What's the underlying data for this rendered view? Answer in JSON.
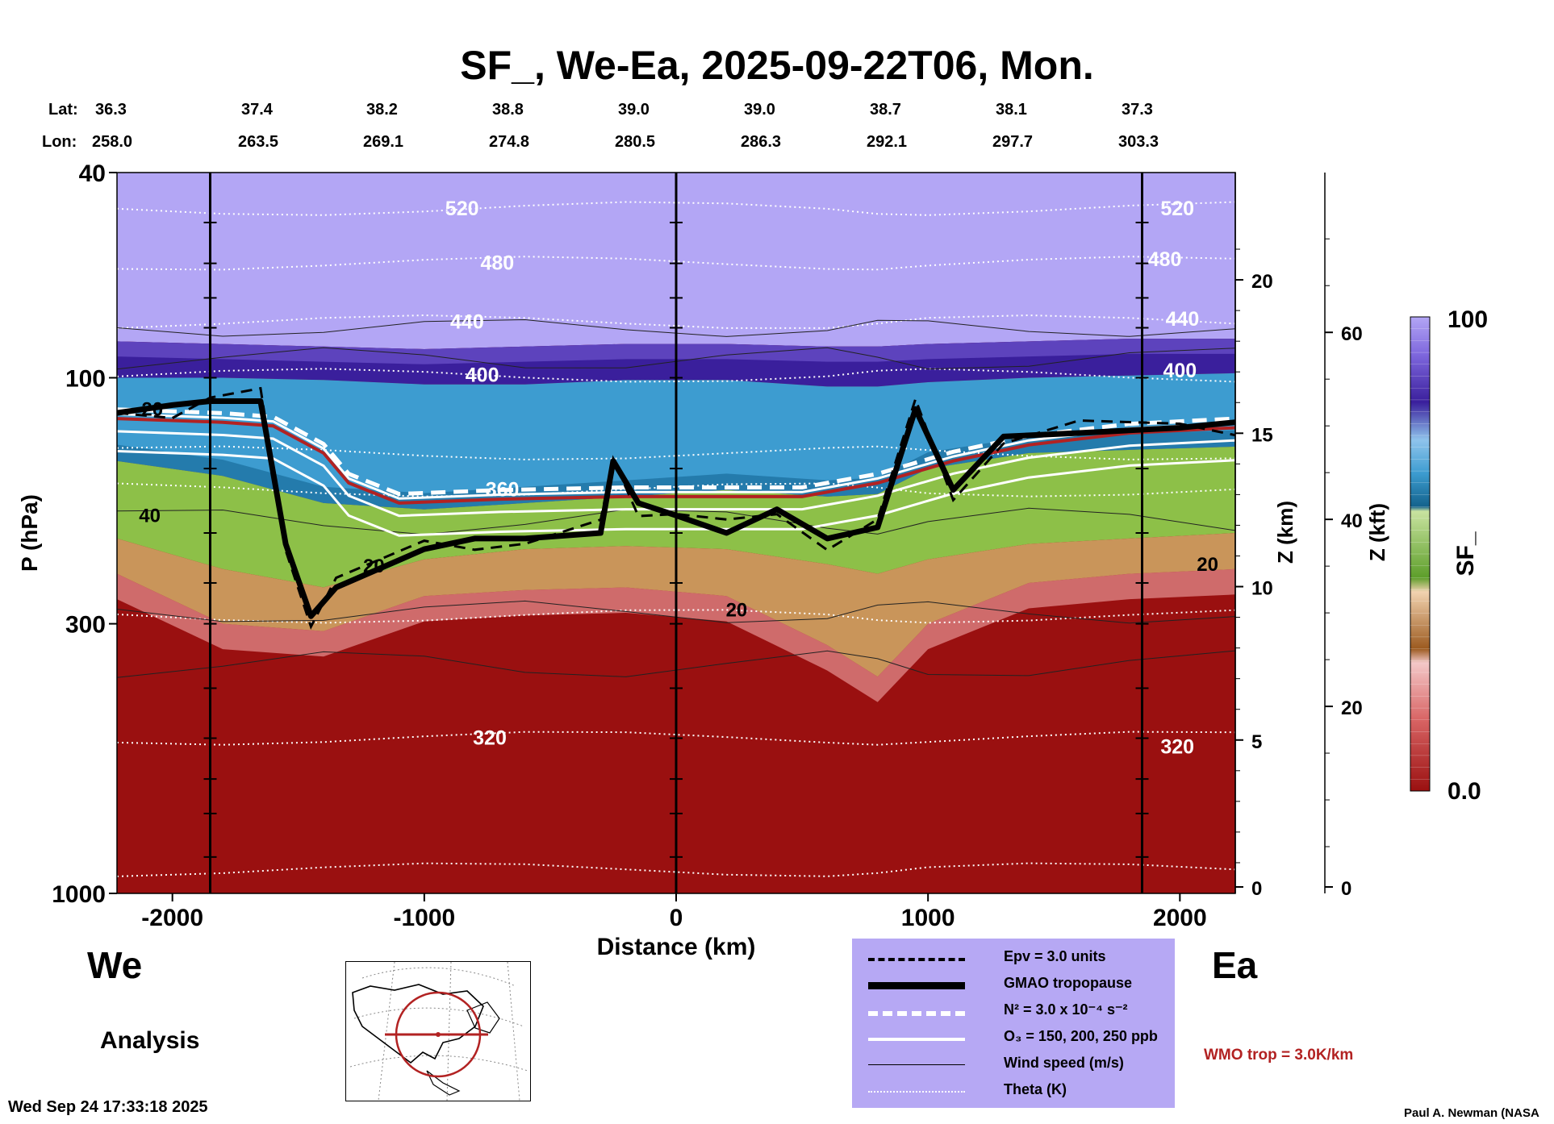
{
  "title": "SF_, We-Ea, 2025-09-22T06, Mon.",
  "lat_label": "Lat:",
  "lon_label": "Lon:",
  "lat_values": [
    "36.3",
    "37.4",
    "38.2",
    "38.8",
    "39.0",
    "39.0",
    "38.7",
    "38.1",
    "37.3"
  ],
  "lon_values": [
    "258.0",
    "263.5",
    "269.1",
    "274.8",
    "280.5",
    "286.3",
    "292.1",
    "297.7",
    "303.3"
  ],
  "left_region": "We",
  "right_region": "Ea",
  "analysis_label": "Analysis",
  "wmo_label": "WMO trop = 3.0K/km",
  "timestamp": "Wed Sep 24 17:33:18 2025",
  "author": "Paul A. Newman (NASA",
  "legend": [
    {
      "label": "Epv = 3.0 units",
      "style": "black-dashed"
    },
    {
      "label": "GMAO tropopause",
      "style": "black-thick"
    },
    {
      "label": "N² = 3.0 x 10⁻⁴ s⁻²",
      "style": "white-dashed"
    },
    {
      "label": "O₃ = 150, 200, 250 ppb",
      "style": "white-solid"
    },
    {
      "label": "Wind speed (m/s)",
      "style": "black-thin"
    },
    {
      "label": "Theta (K)",
      "style": "white-dotted"
    }
  ],
  "colors": {
    "high": "#5a2fb0",
    "top": "#b3a6f5",
    "tropo_blue": "#2f8fc0",
    "green": "#8dc048",
    "tan": "#c9955a",
    "low": "#9a1010",
    "wmo": "#b22222",
    "legend_bg": "#b6a8f4"
  },
  "chart_data": {
    "type": "heatmap",
    "title": "SF_, We-Ea, 2025-09-22T06, Mon.",
    "xlabel": "Distance (km)",
    "ylabel": "P (hPa)",
    "right_axis_1_label": "Z (km)",
    "right_axis_2_label": "Z (kft)",
    "colorbar_label": "SF_",
    "xlim": [
      -2220,
      2220
    ],
    "ylim": [
      1000,
      40
    ],
    "y_scale": "log",
    "x_ticks": [
      -2000,
      -1000,
      0,
      1000,
      2000
    ],
    "x_tick_labels": [
      "-2000",
      "-1000",
      "0",
      "1000",
      "2000"
    ],
    "y_ticks": [
      40,
      100,
      300,
      1000
    ],
    "y_tick_labels": [
      "40",
      "100",
      "300",
      "1000"
    ],
    "z_km_ticks": [
      0,
      5,
      10,
      15,
      20
    ],
    "z_km_tick_labels": [
      "0",
      "5",
      "10",
      "15",
      "20"
    ],
    "z_kft_ticks": [
      0,
      20,
      40,
      60
    ],
    "z_kft_tick_labels": [
      "0",
      "20",
      "40",
      "60"
    ],
    "colorbar_range": [
      0.0,
      100
    ],
    "colorbar_tick_labels": [
      "100",
      "0.0"
    ],
    "theta_labels": [
      {
        "text": "520",
        "x": -850,
        "p": 47
      },
      {
        "text": "480",
        "x": -710,
        "p": 60
      },
      {
        "text": "440",
        "x": -830,
        "p": 78
      },
      {
        "text": "400",
        "x": -770,
        "p": 99
      },
      {
        "text": "360",
        "x": -690,
        "p": 165
      },
      {
        "text": "320",
        "x": -740,
        "p": 500
      },
      {
        "text": "520",
        "x": 1990,
        "p": 47
      },
      {
        "text": "480",
        "x": 1940,
        "p": 59
      },
      {
        "text": "440",
        "x": 2010,
        "p": 77
      },
      {
        "text": "400",
        "x": 2000,
        "p": 97
      },
      {
        "text": "320",
        "x": 1990,
        "p": 520
      }
    ],
    "wind_labels": [
      {
        "text": "20",
        "x": -2080,
        "p": 115
      },
      {
        "text": "40",
        "x": -2090,
        "p": 185
      },
      {
        "text": "20",
        "x": -1200,
        "p": 232
      },
      {
        "text": "20",
        "x": 240,
        "p": 282
      },
      {
        "text": "20",
        "x": 2110,
        "p": 230
      }
    ],
    "vertical_lines_x": [
      -1850,
      0,
      1850
    ],
    "gmao_tropopause": {
      "x": [
        -2220,
        -2000,
        -1850,
        -1650,
        -1550,
        -1450,
        -1350,
        -1000,
        -800,
        -600,
        -300,
        -250,
        -150,
        0,
        200,
        400,
        600,
        800,
        950,
        1100,
        1300,
        1600,
        2000,
        2220
      ],
      "p": [
        117,
        113,
        111,
        111,
        210,
        290,
        255,
        215,
        205,
        205,
        200,
        145,
        175,
        185,
        200,
        180,
        205,
        195,
        115,
        165,
        130,
        128,
        125,
        122
      ]
    },
    "wmo_tropopause": {
      "x": [
        -2220,
        -1800,
        -1600,
        -1400,
        -1300,
        -1100,
        -700,
        -200,
        500,
        800,
        1100,
        1400,
        1800,
        2220
      ],
      "p": [
        120,
        122,
        124,
        140,
        160,
        175,
        172,
        170,
        170,
        160,
        145,
        135,
        128,
        125
      ]
    },
    "pv_contour_levels_hpa_by_x": {
      "x": [
        -2220,
        -1800,
        -1400,
        -1000,
        -600,
        -200,
        200,
        600,
        800,
        1000,
        1400,
        1800,
        2220
      ],
      "top_violet": [
        85,
        86,
        87,
        88,
        87,
        86,
        86,
        87,
        87,
        86,
        85,
        84,
        84
      ],
      "dark_blue": [
        100,
        100,
        101,
        103,
        103,
        101,
        101,
        104,
        104,
        102,
        100,
        99,
        98
      ],
      "blue_base": [
        145,
        155,
        175,
        180,
        175,
        170,
        165,
        170,
        168,
        150,
        140,
        138,
        136
      ],
      "green_base": [
        205,
        235,
        255,
        225,
        215,
        212,
        215,
        230,
        240,
        225,
        210,
        205,
        200
      ],
      "tan_base": [
        240,
        300,
        310,
        265,
        258,
        255,
        265,
        330,
        380,
        300,
        250,
        240,
        235
      ]
    }
  }
}
